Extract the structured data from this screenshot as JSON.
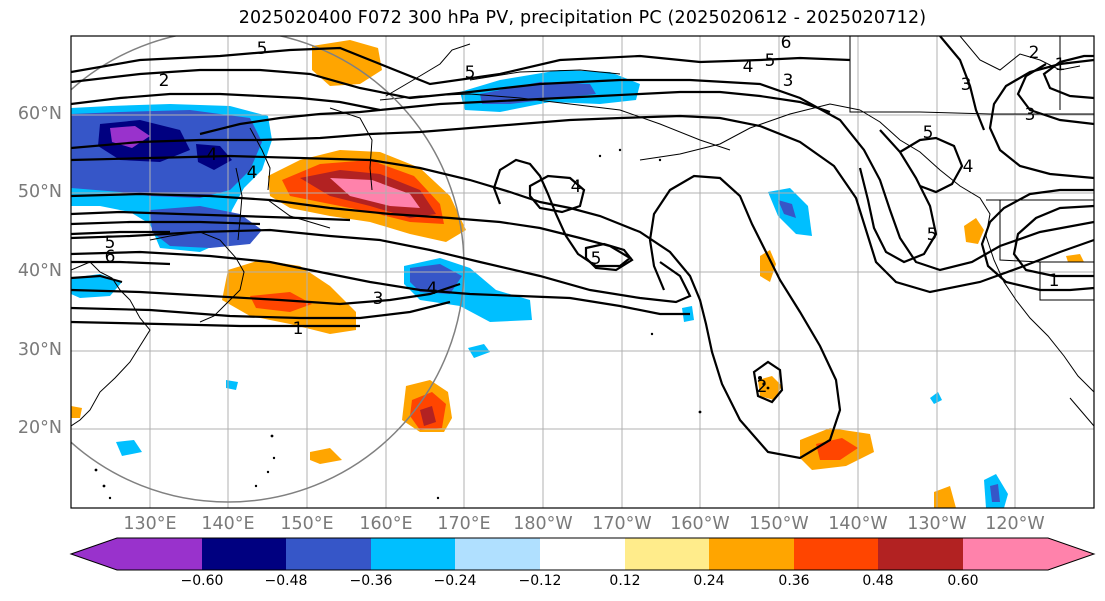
{
  "title": "2025020400 F072 300 hPa PV, precipitation PC (2025020612 - 2025020712)",
  "map": {
    "projection": "PlateCarree, Pacific-centered",
    "lat_labels": [
      "60°N",
      "50°N",
      "40°N",
      "30°N",
      "20°N"
    ],
    "lon_labels": [
      "130°E",
      "140°E",
      "150°E",
      "160°E",
      "170°E",
      "180°W",
      "170°W",
      "160°W",
      "150°W",
      "140°W",
      "130°W",
      "120°W"
    ],
    "gridlines": true,
    "contour_labels": [
      "5",
      "6",
      "5",
      "4",
      "5",
      "3",
      "2",
      "4",
      "4",
      "4",
      "5",
      "6",
      "5",
      "5",
      "3",
      "4",
      "1",
      "3",
      "3",
      "2",
      "1",
      "5",
      "4",
      "1",
      "2"
    ],
    "pv_contour_color": "#000000",
    "great_circle_color": "#808080",
    "coastline_color": "#000000"
  },
  "colorbar": {
    "extend": "both",
    "colors": [
      "#9932cc",
      "#000080",
      "#3656c8",
      "#00bfff",
      "#b0e0ff",
      "#ffffff",
      "#ffec8b",
      "#ffa500",
      "#ff4500",
      "#b22222",
      "#ff82ab"
    ],
    "tick_labels": [
      "−0.60",
      "−0.48",
      "−0.36",
      "−0.24",
      "−0.12",
      "0.12",
      "0.24",
      "0.36",
      "0.48",
      "0.60"
    ]
  }
}
